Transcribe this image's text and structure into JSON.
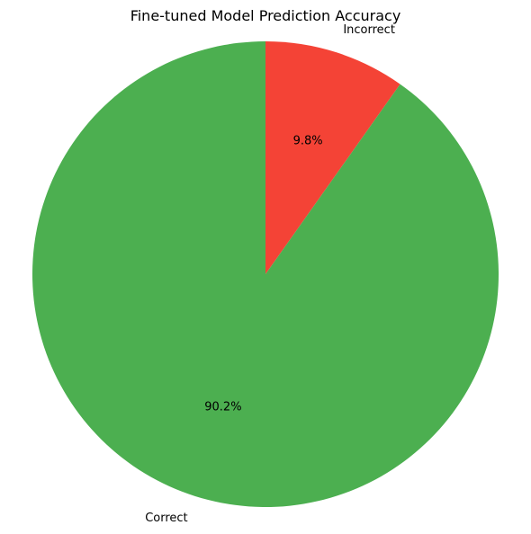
{
  "chart_data": {
    "type": "pie",
    "title": "Fine-tuned Model Prediction Accuracy",
    "start_angle_deg": 90,
    "direction": "clockwise",
    "slices": [
      {
        "label": "Incorrect",
        "value": 9.8,
        "percent_label": "9.8%",
        "color": "#f44336"
      },
      {
        "label": "Correct",
        "value": 90.2,
        "percent_label": "90.2%",
        "color": "#4caf50"
      }
    ]
  }
}
